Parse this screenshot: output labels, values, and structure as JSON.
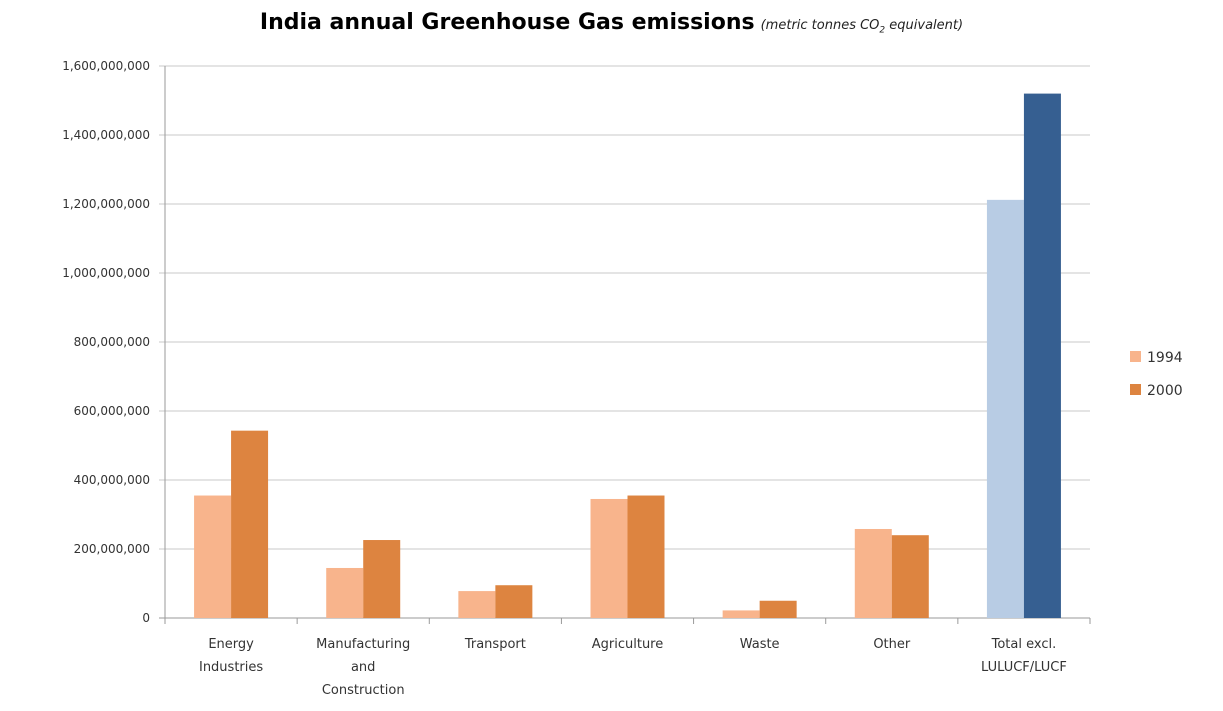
{
  "chart_data": {
    "type": "bar",
    "title": "India annual Greenhouse Gas emissions",
    "subtitle_prefix": "(metric tonnes CO",
    "subtitle_sub": "2",
    "subtitle_suffix": " equivalent)",
    "xlabel": "",
    "ylabel": "",
    "ylim": [
      0,
      1600000000
    ],
    "yticks": [
      0,
      200000000,
      400000000,
      600000000,
      800000000,
      1000000000,
      1200000000,
      1400000000,
      1600000000
    ],
    "ytick_labels": [
      "0",
      "200,000,000",
      "400,000,000",
      "600,000,000",
      "800,000,000",
      "1,000,000,000",
      "1,200,000,000",
      "1,400,000,000",
      "1,600,000,000"
    ],
    "grid": true,
    "legend_position": "right",
    "categories": [
      [
        "Energy",
        "Industries"
      ],
      [
        "Manufacturing",
        "and",
        "Construction"
      ],
      [
        "Transport"
      ],
      [
        "Agriculture"
      ],
      [
        "Waste"
      ],
      [
        "Other"
      ],
      [
        "Total excl.",
        "LULUCF/LUCF"
      ]
    ],
    "series": [
      {
        "name": "1994",
        "color": "#f8b48c",
        "values": [
          355000000,
          145000000,
          78000000,
          345000000,
          22000000,
          258000000,
          1212000000
        ]
      },
      {
        "name": "2000",
        "color": "#dd8440",
        "values": [
          543000000,
          226000000,
          95000000,
          355000000,
          50000000,
          240000000,
          1520000000
        ]
      }
    ],
    "highlight_category_index": 6,
    "highlight_colors": [
      "#b8cce4",
      "#365f91"
    ]
  }
}
